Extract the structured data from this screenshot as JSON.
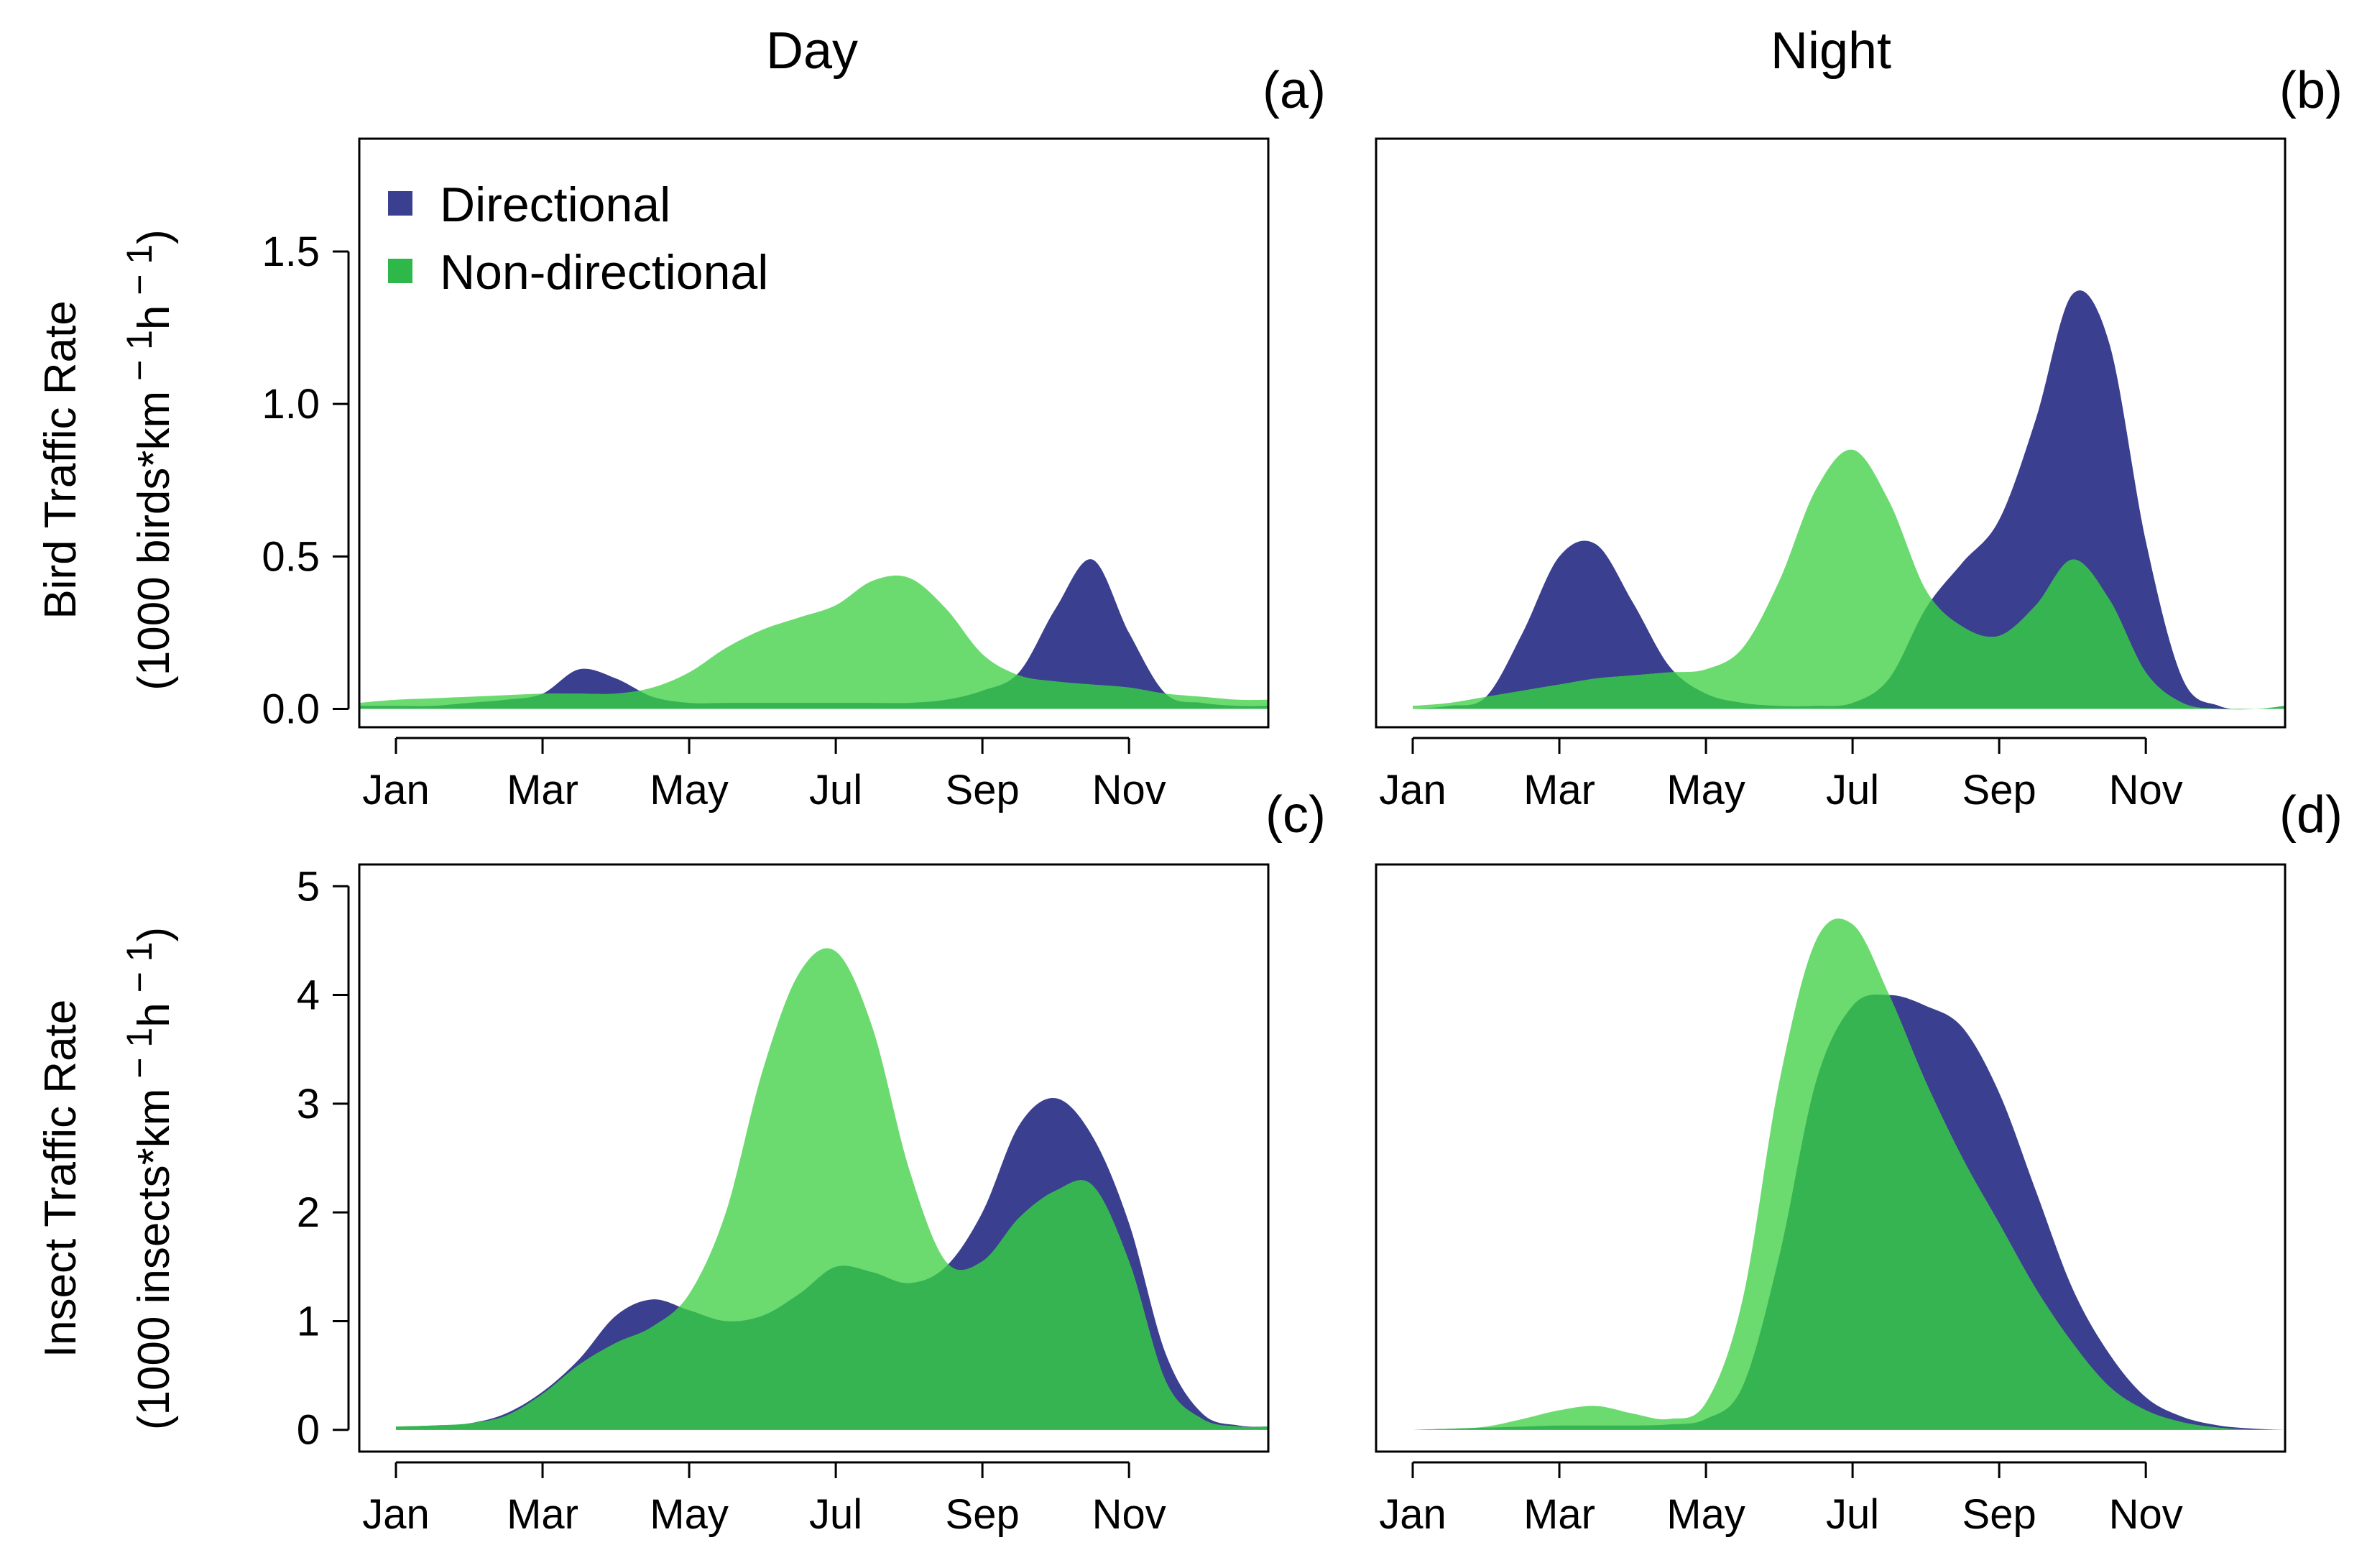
{
  "figure": {
    "col_titles": [
      "Day",
      "Night"
    ],
    "ylabels": {
      "bird": {
        "line1": "Bird Traffic Rate",
        "line2": "(1000 birds*km",
        "unit_tail": "h",
        "exp": " − 1",
        "close": ")"
      },
      "insect": {
        "line1": "Insect Traffic Rate",
        "line2": "(1000 insects*km",
        "unit_tail": "h",
        "exp": " − 1",
        "close": ")"
      }
    }
  },
  "legend": {
    "entries": [
      {
        "label": "Directional",
        "color": "#3a3f8f"
      },
      {
        "label": "Non-directional",
        "color": "#2fb84a"
      }
    ]
  },
  "colors": {
    "directional": "#3a3f8f",
    "nondirectional_light": "#6bdb70",
    "overlap": "#37b452"
  },
  "chart_data": [
    {
      "type": "area",
      "panel": "(a)",
      "title": "Day",
      "ylabel": "Bird Traffic Rate (1000 birds*km − 1 h − 1)",
      "xlabel": "",
      "x_tick_labels": [
        "Jan",
        "Mar",
        "May",
        "Jul",
        "Sep",
        "Nov"
      ],
      "x_tick_months": [
        0,
        2,
        4,
        6,
        8,
        10
      ],
      "xlim": [
        -0.5,
        11.9
      ],
      "ylim": [
        -0.06,
        1.87
      ],
      "y_ticks": [
        0.0,
        0.5,
        1.0,
        1.5
      ],
      "y_tick_labels": [
        "0.0",
        "0.5",
        "1.0",
        "1.5"
      ],
      "x": [
        -0.5,
        0,
        0.5,
        1,
        1.5,
        2,
        2.5,
        3,
        3.5,
        4,
        4.5,
        5,
        5.5,
        6,
        6.5,
        7,
        7.5,
        8,
        8.5,
        9,
        9.5,
        10,
        10.5,
        11,
        11.5,
        11.9
      ],
      "series": [
        {
          "name": "Directional",
          "values": [
            0.01,
            0.01,
            0.01,
            0.02,
            0.03,
            0.05,
            0.13,
            0.1,
            0.04,
            0.02,
            0.02,
            0.02,
            0.02,
            0.02,
            0.02,
            0.02,
            0.03,
            0.06,
            0.12,
            0.33,
            0.49,
            0.25,
            0.05,
            0.02,
            0.01,
            0.01
          ]
        },
        {
          "name": "Non-directional",
          "values": [
            0.02,
            0.03,
            0.035,
            0.04,
            0.045,
            0.05,
            0.05,
            0.05,
            0.07,
            0.12,
            0.2,
            0.26,
            0.3,
            0.34,
            0.42,
            0.43,
            0.33,
            0.18,
            0.11,
            0.09,
            0.08,
            0.07,
            0.05,
            0.04,
            0.03,
            0.03
          ]
        }
      ]
    },
    {
      "type": "area",
      "panel": "(b)",
      "title": "Night",
      "ylabel": "",
      "xlabel": "",
      "x_tick_labels": [
        "Jan",
        "Mar",
        "May",
        "Jul",
        "Sep",
        "Nov"
      ],
      "x_tick_months": [
        0,
        2,
        4,
        6,
        8,
        10
      ],
      "xlim": [
        -0.5,
        11.9
      ],
      "ylim": [
        -0.06,
        1.87
      ],
      "y_ticks": [],
      "y_tick_labels": [],
      "x": [
        0,
        0.5,
        1,
        1.5,
        2,
        2.5,
        3,
        3.5,
        4,
        4.5,
        5,
        5.5,
        6,
        6.5,
        7,
        7.5,
        8,
        8.5,
        9,
        9.5,
        10,
        10.5,
        11,
        11.5,
        11.9
      ],
      "series": [
        {
          "name": "Directional",
          "values": [
            0.0,
            0.01,
            0.04,
            0.25,
            0.5,
            0.54,
            0.35,
            0.14,
            0.05,
            0.02,
            0.01,
            0.01,
            0.02,
            0.1,
            0.33,
            0.48,
            0.62,
            0.95,
            1.36,
            1.2,
            0.55,
            0.1,
            0.01,
            0.0,
            0.01
          ]
        },
        {
          "name": "Non-directional",
          "values": [
            0.01,
            0.02,
            0.04,
            0.06,
            0.08,
            0.1,
            0.11,
            0.12,
            0.13,
            0.2,
            0.42,
            0.72,
            0.85,
            0.68,
            0.39,
            0.27,
            0.24,
            0.34,
            0.49,
            0.36,
            0.12,
            0.02,
            0.0,
            0.0,
            0.01
          ]
        }
      ]
    },
    {
      "type": "area",
      "panel": "(c)",
      "title": "",
      "ylabel": "Insect Traffic Rate (1000 insects*km − 1 h − 1)",
      "xlabel": "",
      "x_tick_labels": [
        "Jan",
        "Mar",
        "May",
        "Jul",
        "Sep",
        "Nov"
      ],
      "x_tick_months": [
        0,
        2,
        4,
        6,
        8,
        10
      ],
      "xlim": [
        -0.5,
        11.9
      ],
      "ylim": [
        -0.2,
        5.2
      ],
      "y_ticks": [
        0,
        1,
        2,
        3,
        4,
        5
      ],
      "y_tick_labels": [
        "0",
        "1",
        "2",
        "3",
        "4",
        "5"
      ],
      "x": [
        0,
        0.5,
        1,
        1.5,
        2,
        2.5,
        3,
        3.5,
        4,
        4.5,
        5,
        5.5,
        6,
        6.5,
        7,
        7.5,
        8,
        8.5,
        9,
        9.5,
        10,
        10.5,
        11,
        11.5,
        11.9
      ],
      "series": [
        {
          "name": "Directional",
          "values": [
            0.03,
            0.04,
            0.06,
            0.15,
            0.35,
            0.65,
            1.05,
            1.2,
            1.1,
            1.0,
            1.05,
            1.25,
            1.5,
            1.45,
            1.35,
            1.5,
            2.0,
            2.8,
            3.05,
            2.7,
            1.9,
            0.7,
            0.15,
            0.04,
            0.03
          ]
        },
        {
          "name": "Non-directional",
          "values": [
            0.03,
            0.04,
            0.06,
            0.13,
            0.33,
            0.6,
            0.8,
            0.95,
            1.25,
            2.0,
            3.3,
            4.2,
            4.4,
            3.7,
            2.4,
            1.55,
            1.55,
            1.95,
            2.2,
            2.25,
            1.55,
            0.45,
            0.1,
            0.03,
            0.03
          ]
        }
      ]
    },
    {
      "type": "area",
      "panel": "(d)",
      "title": "",
      "ylabel": "",
      "xlabel": "",
      "x_tick_labels": [
        "Jan",
        "Mar",
        "May",
        "Jul",
        "Sep",
        "Nov"
      ],
      "x_tick_months": [
        0,
        2,
        4,
        6,
        8,
        10
      ],
      "xlim": [
        -0.5,
        11.9
      ],
      "ylim": [
        -0.2,
        5.2
      ],
      "y_ticks": [],
      "y_tick_labels": [],
      "x": [
        0,
        0.5,
        1,
        1.5,
        2,
        2.5,
        3,
        3.5,
        4,
        4.5,
        5,
        5.5,
        6,
        6.5,
        7,
        7.5,
        8,
        8.5,
        9,
        9.5,
        10,
        10.5,
        11,
        11.5,
        11.9
      ],
      "series": [
        {
          "name": "Directional",
          "values": [
            0.0,
            0.01,
            0.02,
            0.03,
            0.04,
            0.04,
            0.04,
            0.05,
            0.1,
            0.4,
            1.6,
            3.2,
            3.9,
            4.0,
            3.9,
            3.7,
            3.1,
            2.2,
            1.3,
            0.7,
            0.3,
            0.12,
            0.04,
            0.01,
            0.0
          ]
        },
        {
          "name": "Non-directional",
          "values": [
            0.0,
            0.01,
            0.03,
            0.1,
            0.18,
            0.22,
            0.15,
            0.1,
            0.25,
            1.2,
            3.2,
            4.5,
            4.65,
            4.0,
            3.2,
            2.5,
            1.9,
            1.3,
            0.8,
            0.4,
            0.18,
            0.07,
            0.02,
            0.0,
            0.0
          ]
        }
      ]
    }
  ]
}
